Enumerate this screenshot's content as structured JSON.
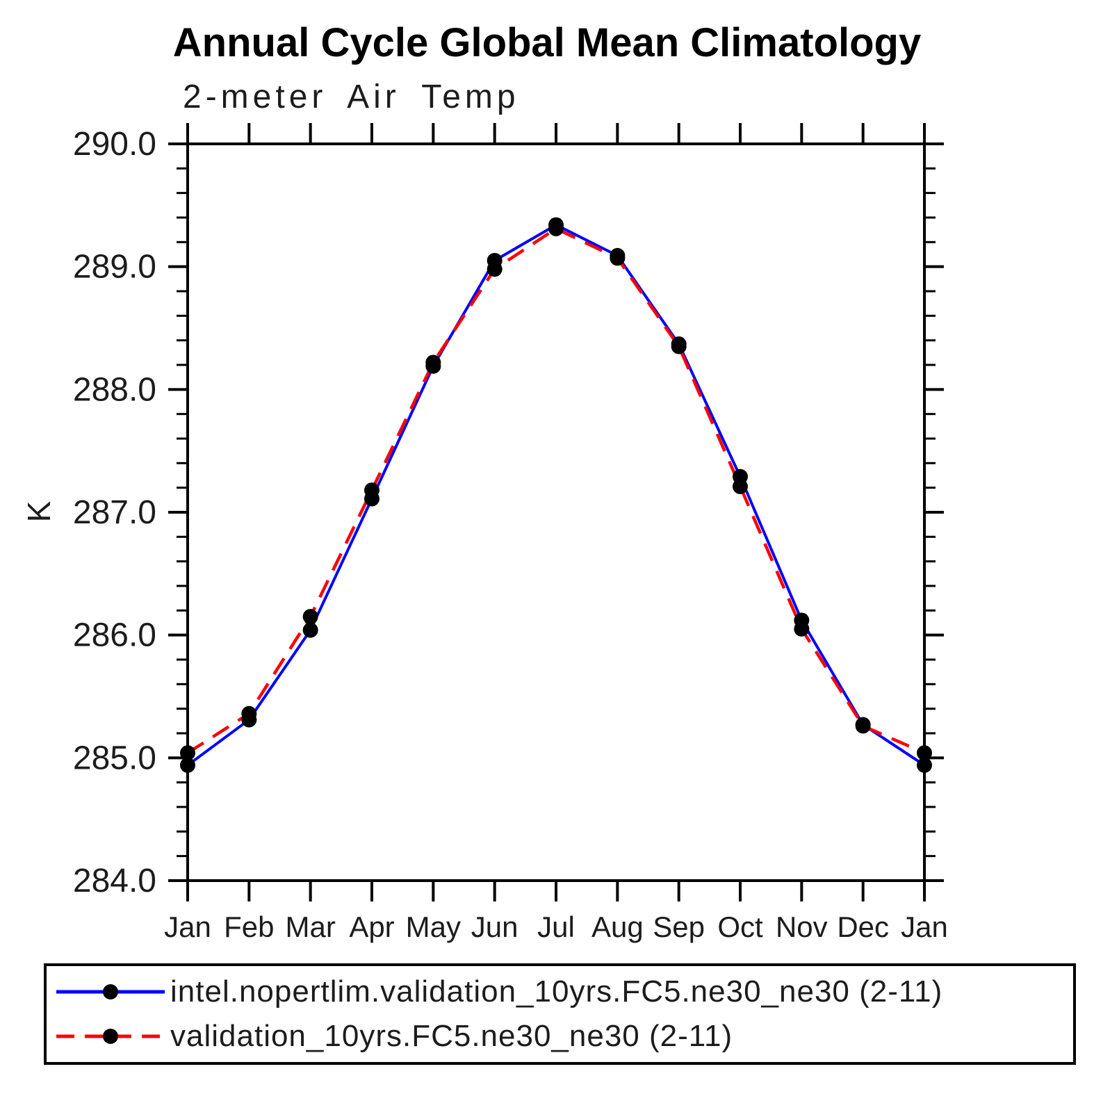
{
  "page": {
    "background": "#ffffff"
  },
  "chart_data": {
    "type": "line",
    "title": "Annual Cycle Global Mean Climatology",
    "subtitle": "2-meter Air Temp",
    "ylabel": "K",
    "xlabel": "",
    "x_categories": [
      "Jan",
      "Feb",
      "Mar",
      "Apr",
      "May",
      "Jun",
      "Jul",
      "Aug",
      "Sep",
      "Oct",
      "Nov",
      "Dec",
      "Jan"
    ],
    "ylim": [
      284.0,
      290.0
    ],
    "y_major_step": 1.0,
    "y_minor_step": 0.2,
    "y_tick_labels": [
      "284.0",
      "285.0",
      "286.0",
      "287.0",
      "288.0",
      "289.0",
      "290.0"
    ],
    "grid": false,
    "legend_position": "bottom",
    "axis_color": "#000000",
    "series": [
      {
        "name": "intel.nopertlim.validation_10yrs.FC5.ne30_ne30 (2-11)",
        "color": "#0000ff",
        "line_style": "solid",
        "marker": "filled-circle",
        "marker_color": "#000000",
        "values": [
          284.94,
          285.31,
          286.04,
          287.11,
          288.19,
          289.05,
          289.34,
          289.09,
          288.37,
          287.29,
          286.12,
          285.27,
          284.94
        ]
      },
      {
        "name": "validation_10yrs.FC5.ne30_ne30 (2-11)",
        "color": "#ff0000",
        "line_style": "dashed",
        "marker": "filled-circle",
        "marker_color": "#000000",
        "values": [
          285.04,
          285.36,
          286.15,
          287.18,
          288.22,
          288.98,
          289.31,
          289.07,
          288.35,
          287.21,
          286.05,
          285.26,
          285.04
        ]
      }
    ]
  }
}
